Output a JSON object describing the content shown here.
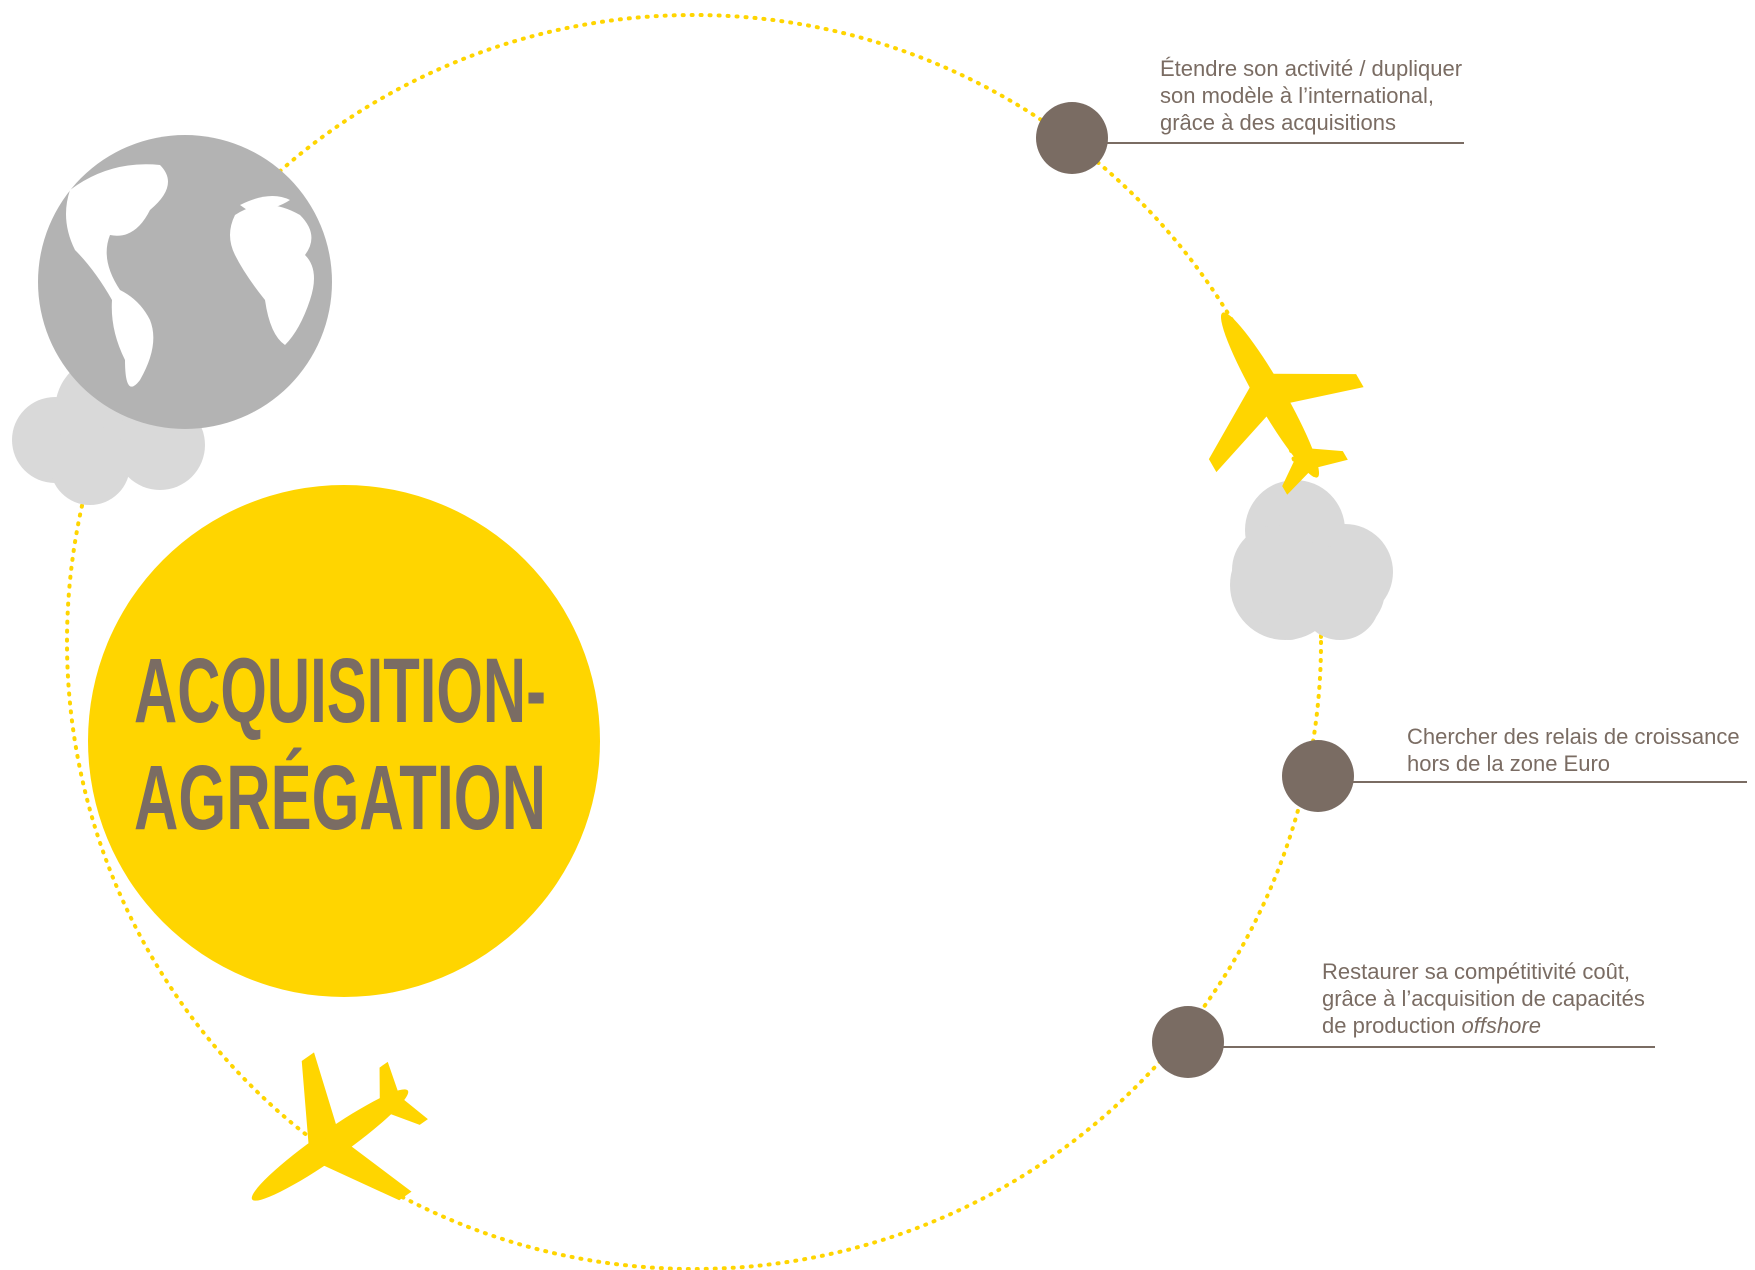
{
  "title": [
    "ACQUISITION-",
    "AGRÉGATION"
  ],
  "items": [
    {
      "lines": [
        "Étendre son activité / dupliquer",
        "son modèle à l’international,",
        "grâce à des acquisitions"
      ]
    },
    {
      "lines": [
        "Chercher des relais de croissance",
        "hors de la zone Euro"
      ]
    },
    {
      "lines": [
        "Restaurer sa compétitivité coût,",
        "grâce à l’acquisition de capacités",
        "de production"
      ],
      "emphasis": "offshore"
    }
  ]
}
